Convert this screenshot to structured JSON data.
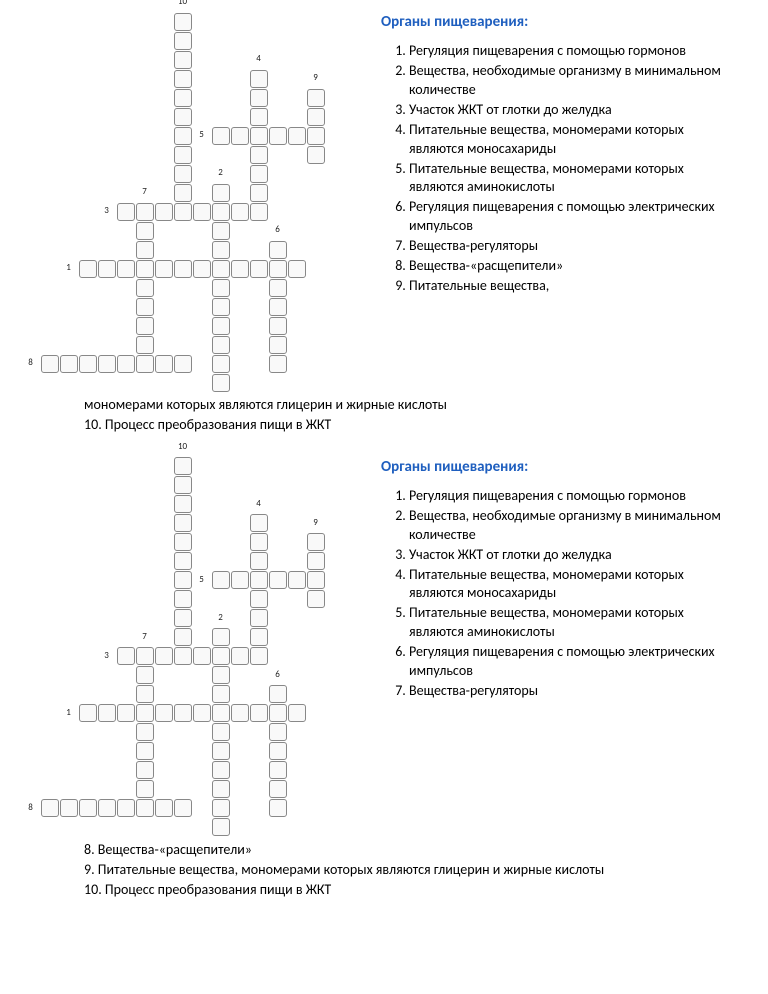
{
  "title": "Органы пищеварения:",
  "grid": {
    "cols": 17,
    "rows": 20,
    "cell_size": 18,
    "cell_bg": "#f9f9f9",
    "border_color": "#888888",
    "words": [
      {
        "n": 10,
        "r": 0,
        "c": 7,
        "dir": "v",
        "len": 11
      },
      {
        "n": 4,
        "r": 3,
        "c": 11,
        "dir": "v",
        "len": 8
      },
      {
        "n": 9,
        "r": 4,
        "c": 14,
        "dir": "v",
        "len": 4
      },
      {
        "n": 5,
        "r": 6,
        "c": 9,
        "dir": "h",
        "len": 5
      },
      {
        "n": 2,
        "r": 9,
        "c": 9,
        "dir": "v",
        "len": 11
      },
      {
        "n": 3,
        "r": 10,
        "c": 4,
        "dir": "h",
        "len": 7
      },
      {
        "n": 7,
        "r": 10,
        "c": 5,
        "dir": "v",
        "len": 8
      },
      {
        "n": 6,
        "r": 12,
        "c": 12,
        "dir": "v",
        "len": 7
      },
      {
        "n": 1,
        "r": 13,
        "c": 2,
        "dir": "h",
        "len": 12
      },
      {
        "n": 8,
        "r": 18,
        "c": 0,
        "dir": "h",
        "len": 8
      }
    ]
  },
  "clues_side_block1": [
    "Регуляция пищеварения с помощью гормонов",
    "Вещества, необходимые организму в минимальном количестве",
    "Участок ЖКТ от глотки до желудка",
    "Питательные вещества, мономерами которых являются моносахариды",
    "Питательные вещества, мономерами которых являются аминокислоты",
    "Регуляция пищеварения с помощью электрических импульсов",
    "Вещества-регуляторы",
    "Вещества-«расщепители»",
    "Питательные вещества,"
  ],
  "overflow_block1": [
    "мономерами которых являются глицерин и жирные кислоты",
    "10. Процесс преобразования пищи в ЖКТ"
  ],
  "clues_side_block2": [
    "Регуляция пищеварения с помощью гормонов",
    "Вещества, необходимые организму в минимальном количестве",
    "Участок ЖКТ от глотки до желудка",
    "Питательные вещества, мономерами которых являются моносахариды",
    "Питательные вещества, мономерами которых являются аминокислоты",
    "Регуляция пищеварения с помощью электрических импульсов",
    "Вещества-регуляторы"
  ],
  "overflow_block2": [
    "8.  Вещества-«расщепители»",
    "9.  Питательные вещества, мономерами которых являются глицерин и жирные кислоты",
    "10. Процесс преобразования пищи в ЖКТ"
  ]
}
